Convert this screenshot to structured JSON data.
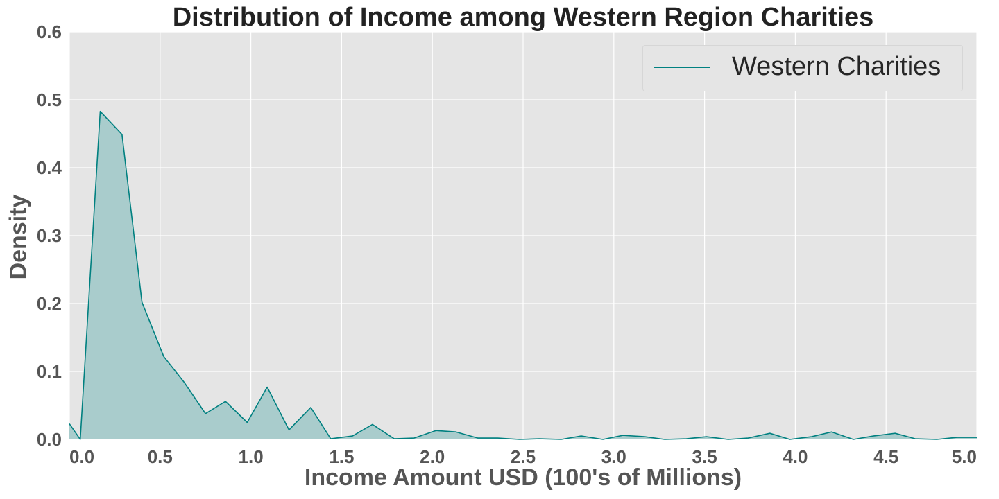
{
  "chart_data": {
    "type": "area",
    "title": "Distribution of Income among Western Region Charities",
    "xlabel": "Income Amount USD (100's of Millions)",
    "ylabel": "Density",
    "xlim": [
      0.0,
      5.0
    ],
    "ylim": [
      0.0,
      0.6
    ],
    "xticks": [
      "0.0",
      "0.5",
      "1.0",
      "1.5",
      "2.0",
      "2.5",
      "3.0",
      "3.5",
      "4.0",
      "4.5",
      "5.0"
    ],
    "yticks": [
      "0.0",
      "0.1",
      "0.2",
      "0.3",
      "0.4",
      "0.5",
      "0.6"
    ],
    "grid": true,
    "legend_position": "upper right",
    "colors": {
      "line": "#008080",
      "fill": "#a9cccc",
      "background": "#e5e5e5",
      "grid": "#ffffff"
    },
    "series": [
      {
        "name": "Western Charities",
        "x": [
          0.0,
          0.06,
          0.17,
          0.29,
          0.4,
          0.52,
          0.63,
          0.75,
          0.86,
          0.98,
          1.09,
          1.21,
          1.33,
          1.44,
          1.56,
          1.67,
          1.79,
          1.9,
          2.02,
          2.13,
          2.25,
          2.36,
          2.48,
          2.59,
          2.71,
          2.82,
          2.94,
          3.05,
          3.17,
          3.28,
          3.4,
          3.51,
          3.63,
          3.74,
          3.86,
          3.97,
          4.09,
          4.2,
          4.32,
          4.43,
          4.55,
          4.66,
          4.78,
          4.89,
          5.0
        ],
        "y": [
          0.023,
          0.0,
          0.483,
          0.449,
          0.202,
          0.122,
          0.085,
          0.038,
          0.056,
          0.025,
          0.077,
          0.014,
          0.047,
          0.001,
          0.005,
          0.022,
          0.001,
          0.002,
          0.013,
          0.011,
          0.002,
          0.002,
          0.0,
          0.001,
          0.0,
          0.005,
          0.0,
          0.006,
          0.004,
          0.0,
          0.001,
          0.004,
          0.0,
          0.002,
          0.009,
          0.0,
          0.004,
          0.011,
          0.0,
          0.005,
          0.009,
          0.001,
          0.0,
          0.003,
          0.003
        ]
      }
    ]
  }
}
